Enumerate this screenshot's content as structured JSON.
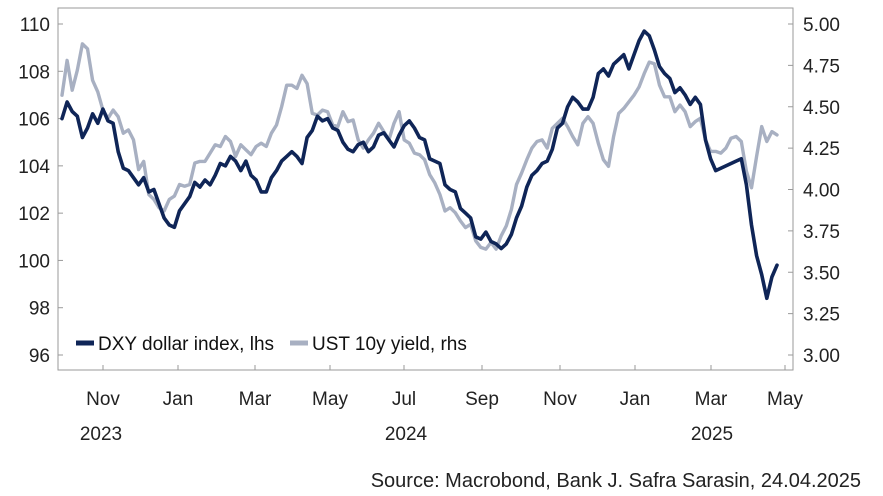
{
  "chart_data": {
    "type": "line",
    "x_range": [
      "2023-09-01",
      "2025-04-24"
    ],
    "y_left": {
      "range": [
        96,
        110
      ],
      "ticks": [
        96,
        98,
        100,
        102,
        104,
        106,
        108,
        110
      ],
      "labels": [
        "96",
        "98",
        "100",
        "102",
        "104",
        "106",
        "108",
        "110"
      ]
    },
    "y_right": {
      "range": [
        3.0,
        5.0
      ],
      "ticks": [
        3.0,
        3.25,
        3.5,
        3.75,
        4.0,
        4.25,
        4.5,
        4.75,
        5.0
      ],
      "labels": [
        "3.00",
        "3.25",
        "3.50",
        "3.75",
        "4.00",
        "4.25",
        "4.50",
        "4.75",
        "5.00"
      ]
    },
    "x_ticks": [
      "Nov",
      "Jan",
      "Mar",
      "May",
      "Jul",
      "Sep",
      "Nov",
      "Jan",
      "Mar",
      "May"
    ],
    "x_year_labels": [
      "2023",
      "2024",
      "2025"
    ],
    "legend": [
      "DXY dollar index, lhs",
      "UST 10y yield, rhs"
    ],
    "series": [
      {
        "name": "DXY dollar index, lhs",
        "axis": "left",
        "color": "#0f2557",
        "values": [
          106.0,
          106.7,
          106.3,
          106.1,
          105.2,
          105.6,
          106.2,
          105.8,
          106.4,
          105.9,
          105.8,
          104.6,
          103.9,
          103.8,
          103.5,
          103.2,
          103.5,
          102.9,
          103.0,
          102.4,
          101.8,
          101.5,
          101.4,
          102.1,
          102.4,
          102.7,
          103.3,
          103.1,
          103.4,
          103.2,
          103.6,
          104.1,
          104.0,
          104.4,
          104.2,
          103.8,
          104.2,
          103.6,
          103.4,
          102.9,
          102.9,
          103.5,
          103.8,
          104.2,
          104.4,
          104.6,
          104.4,
          104.1,
          105.2,
          105.5,
          106.1,
          105.9,
          106.0,
          105.6,
          105.5,
          105.0,
          104.7,
          104.6,
          104.9,
          105.0,
          104.6,
          104.8,
          105.3,
          105.4,
          105.1,
          104.8,
          105.3,
          105.7,
          105.9,
          105.6,
          105.2,
          105.1,
          104.3,
          104.2,
          104.1,
          103.2,
          103.0,
          102.9,
          102.2,
          102.0,
          101.8,
          101.0,
          100.9,
          101.2,
          100.8,
          100.7,
          100.5,
          100.7,
          101.1,
          101.8,
          102.3,
          103.1,
          103.6,
          103.8,
          104.1,
          104.2,
          104.7,
          105.6,
          105.8,
          106.5,
          106.9,
          106.7,
          106.4,
          106.4,
          106.9,
          107.9,
          108.1,
          107.8,
          108.3,
          108.5,
          108.7,
          108.1,
          108.7,
          109.3,
          109.7,
          109.5,
          108.9,
          108.2,
          107.9,
          107.7,
          107.1,
          107.3,
          107.0,
          106.6,
          106.9,
          106.6,
          105.1,
          104.3,
          103.8,
          103.9,
          104.0,
          104.1,
          104.2,
          104.3,
          103.2,
          101.5,
          100.2,
          99.4,
          98.4,
          99.3,
          99.8
        ]
      },
      {
        "name": "UST 10y yield, rhs",
        "axis": "right",
        "color": "#a8b0c2",
        "values": [
          4.57,
          4.78,
          4.6,
          4.72,
          4.88,
          4.85,
          4.66,
          4.59,
          4.48,
          4.43,
          4.48,
          4.44,
          4.34,
          4.36,
          4.3,
          4.12,
          4.17,
          3.97,
          3.94,
          3.89,
          3.87,
          3.94,
          3.96,
          4.03,
          4.02,
          4.03,
          4.16,
          4.17,
          4.17,
          4.22,
          4.27,
          4.26,
          4.32,
          4.29,
          4.2,
          4.27,
          4.24,
          4.21,
          4.26,
          4.28,
          4.26,
          4.34,
          4.39,
          4.5,
          4.63,
          4.63,
          4.61,
          4.69,
          4.64,
          4.46,
          4.45,
          4.48,
          4.47,
          4.39,
          4.38,
          4.47,
          4.41,
          4.42,
          4.3,
          4.25,
          4.3,
          4.34,
          4.4,
          4.35,
          4.3,
          4.4,
          4.47,
          4.3,
          4.28,
          4.22,
          4.21,
          4.18,
          4.09,
          4.04,
          3.97,
          3.87,
          3.89,
          3.86,
          3.81,
          3.77,
          3.79,
          3.69,
          3.65,
          3.64,
          3.68,
          3.64,
          3.72,
          3.78,
          3.88,
          4.03,
          4.1,
          4.18,
          4.25,
          4.29,
          4.3,
          4.25,
          4.37,
          4.4,
          4.43,
          4.38,
          4.32,
          4.27,
          4.4,
          4.44,
          4.4,
          4.28,
          4.18,
          4.14,
          4.32,
          4.46,
          4.49,
          4.53,
          4.57,
          4.62,
          4.7,
          4.77,
          4.76,
          4.63,
          4.56,
          4.56,
          4.47,
          4.51,
          4.47,
          4.38,
          4.41,
          4.43,
          4.3,
          4.23,
          4.23,
          4.22,
          4.25,
          4.31,
          4.32,
          4.29,
          4.11,
          4.01,
          4.2,
          4.38,
          4.29,
          4.35,
          4.33
        ]
      }
    ]
  },
  "source": "Source: Macrobond, Bank J. Safra Sarasin, 24.04.2025"
}
